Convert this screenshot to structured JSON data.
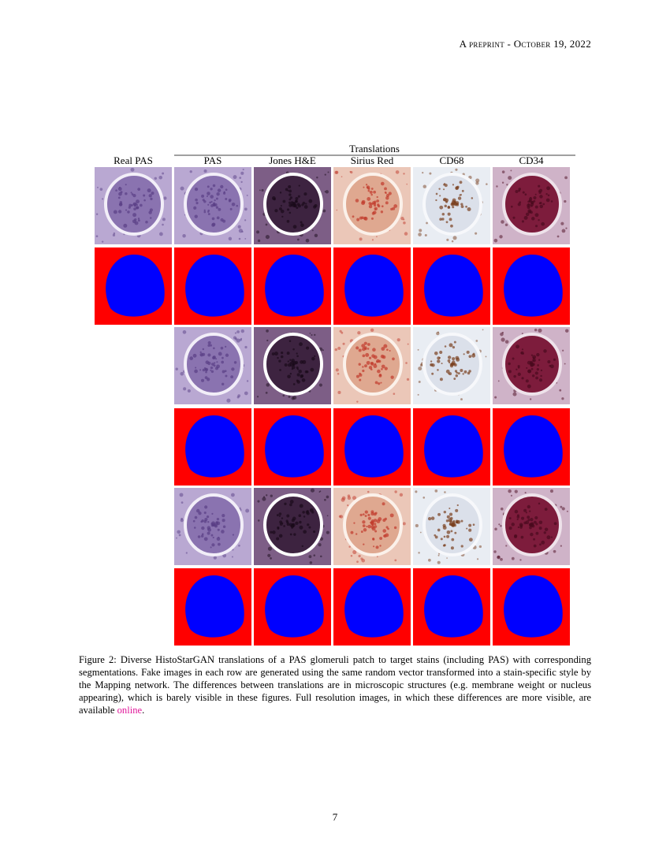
{
  "header": {
    "running_title": "A preprint - October 19, 2022"
  },
  "figure": {
    "group_label": "Translations",
    "columns": [
      "Real PAS",
      "PAS",
      "Jones H&E",
      "Sirius Red",
      "CD68",
      "CD34"
    ],
    "caption": {
      "label": "Figure 2:",
      "text": "Diverse HistoStarGAN translations of a PAS glomeruli patch to target stains (including PAS) with corresponding segmentations. Fake images in each row are generated using the same random vector transformed into a stain-specific style by the Mapping network. The differences between translations are in microscopic structures (e.g. membrane weight or nucleus appearing), which is barely visible in these figures. Full resolution images, in which these differences are more visible, are available",
      "link": "online",
      "end": "."
    }
  },
  "footer": {
    "page_number": "7"
  }
}
